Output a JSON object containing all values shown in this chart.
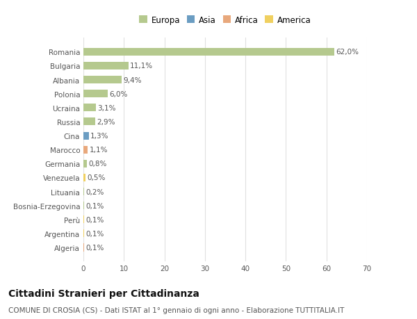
{
  "countries": [
    "Romania",
    "Bulgaria",
    "Albania",
    "Polonia",
    "Ucraina",
    "Russia",
    "Cina",
    "Marocco",
    "Germania",
    "Venezuela",
    "Lituania",
    "Bosnia-Erzegovina",
    "Perù",
    "Argentina",
    "Algeria"
  ],
  "values": [
    62.0,
    11.1,
    9.4,
    6.0,
    3.1,
    2.9,
    1.3,
    1.1,
    0.8,
    0.5,
    0.2,
    0.1,
    0.1,
    0.1,
    0.1
  ],
  "labels": [
    "62,0%",
    "11,1%",
    "9,4%",
    "6,0%",
    "3,1%",
    "2,9%",
    "1,3%",
    "1,1%",
    "0,8%",
    "0,5%",
    "0,2%",
    "0,1%",
    "0,1%",
    "0,1%",
    "0,1%"
  ],
  "continents": [
    "Europa",
    "Europa",
    "Europa",
    "Europa",
    "Europa",
    "Europa",
    "Asia",
    "Africa",
    "Europa",
    "America",
    "Europa",
    "Europa",
    "America",
    "America",
    "Africa"
  ],
  "continent_colors": {
    "Europa": "#b5c98e",
    "Asia": "#6b9dc2",
    "Africa": "#e8a87c",
    "America": "#f0d060"
  },
  "legend_order": [
    "Europa",
    "Asia",
    "Africa",
    "America"
  ],
  "bg_color": "#ffffff",
  "plot_bg_color": "#ffffff",
  "grid_color": "#e0e0e0",
  "title": "Cittadini Stranieri per Cittadinanza",
  "subtitle": "COMUNE DI CROSIA (CS) - Dati ISTAT al 1° gennaio di ogni anno - Elaborazione TUTTITALIA.IT",
  "xlim": [
    0,
    70
  ],
  "xticks": [
    0,
    10,
    20,
    30,
    40,
    50,
    60,
    70
  ],
  "bar_height": 0.55,
  "label_fontsize": 7.5,
  "tick_fontsize": 7.5,
  "title_fontsize": 10,
  "subtitle_fontsize": 7.5
}
